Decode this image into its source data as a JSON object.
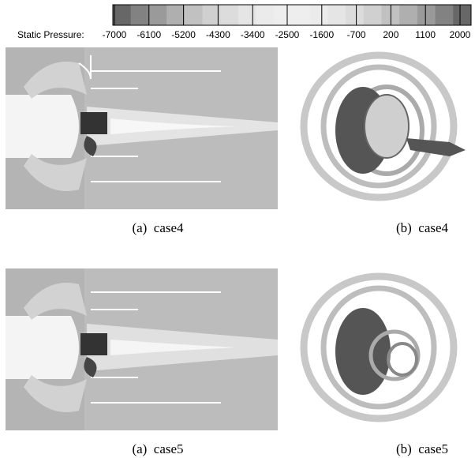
{
  "legend": {
    "label": "Static Pressure:",
    "ticks": [
      -7000,
      -6100,
      -5200,
      -4300,
      -3400,
      -2500,
      -1600,
      -700,
      200,
      1100,
      2000
    ]
  },
  "panels": [
    {
      "caption": "(a)  case4"
    },
    {
      "caption": "(b)  case4"
    },
    {
      "caption": "(a)  case5"
    },
    {
      "caption": "(b)  case5"
    }
  ]
}
